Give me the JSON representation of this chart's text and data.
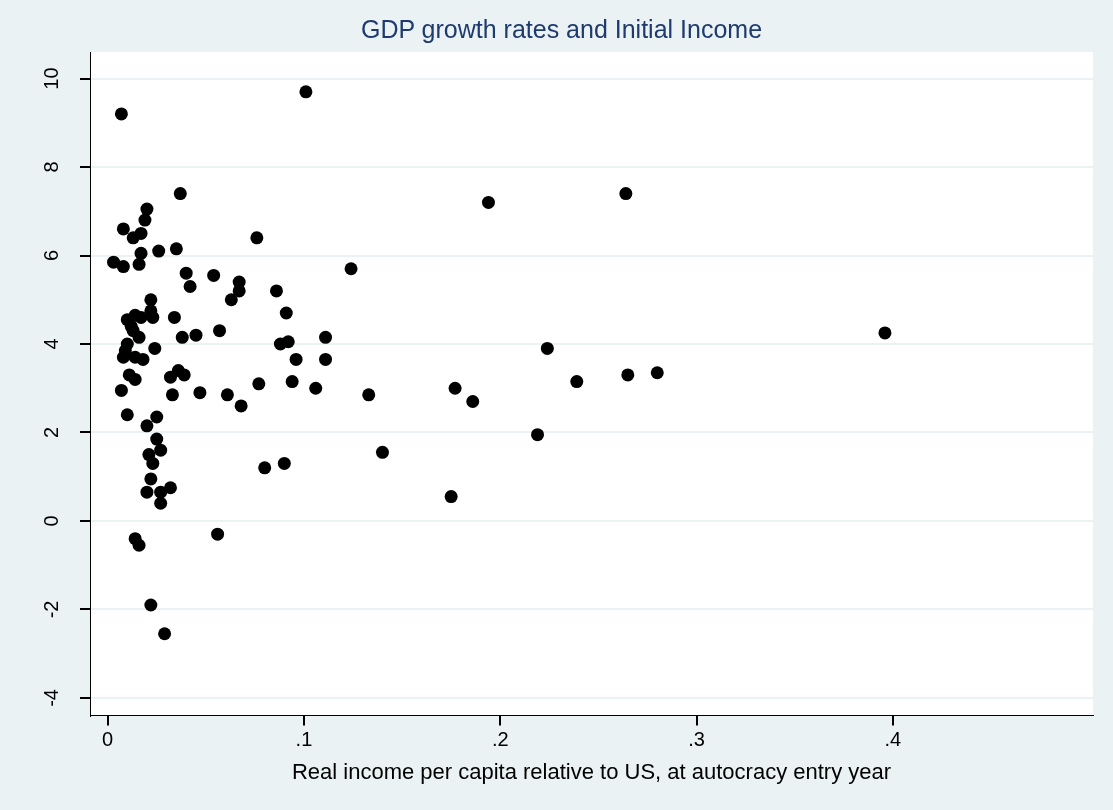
{
  "chart_data": {
    "type": "scatter",
    "title": "GDP growth rates and Initial Income",
    "xlabel": "Real income per capita relative to US, at autocracy entry year",
    "x": [
      0.003,
      0.007,
      0.008,
      0.008,
      0.007,
      0.008,
      0.009,
      0.01,
      0.01,
      0.01,
      0.011,
      0.012,
      0.013,
      0.013,
      0.014,
      0.014,
      0.014,
      0.014,
      0.016,
      0.016,
      0.017,
      0.017,
      0.017,
      0.016,
      0.018,
      0.019,
      0.02,
      0.02,
      0.02,
      0.021,
      0.022,
      0.022,
      0.022,
      0.022,
      0.023,
      0.023,
      0.024,
      0.025,
      0.025,
      0.026,
      0.027,
      0.027,
      0.027,
      0.029,
      0.032,
      0.032,
      0.033,
      0.034,
      0.035,
      0.036,
      0.037,
      0.038,
      0.039,
      0.04,
      0.042,
      0.045,
      0.047,
      0.054,
      0.056,
      0.057,
      0.061,
      0.063,
      0.067,
      0.067,
      0.068,
      0.076,
      0.077,
      0.08,
      0.086,
      0.088,
      0.09,
      0.091,
      0.092,
      0.094,
      0.096,
      0.101,
      0.106,
      0.111,
      0.111,
      0.124,
      0.133,
      0.14,
      0.175,
      0.177,
      0.186,
      0.194,
      0.219,
      0.224,
      0.239,
      0.264,
      0.265,
      0.28,
      0.396
    ],
    "values": [
      5.85,
      9.2,
      5.75,
      6.6,
      2.95,
      3.7,
      3.85,
      4.55,
      4.0,
      2.4,
      3.3,
      4.4,
      4.3,
      6.4,
      3.2,
      3.7,
      4.65,
      -0.4,
      5.8,
      4.15,
      6.05,
      6.5,
      4.6,
      -0.55,
      3.65,
      6.8,
      7.05,
      2.15,
      0.65,
      1.5,
      0.95,
      -1.9,
      5.0,
      4.75,
      4.6,
      1.3,
      3.9,
      2.35,
      1.85,
      6.1,
      1.6,
      0.65,
      0.4,
      -2.55,
      3.25,
      0.75,
      2.85,
      4.6,
      6.15,
      3.4,
      7.4,
      4.15,
      3.3,
      5.6,
      5.3,
      4.2,
      2.9,
      5.55,
      -0.3,
      4.3,
      2.85,
      5.0,
      5.4,
      5.2,
      2.6,
      6.4,
      3.1,
      1.2,
      5.2,
      4.0,
      1.3,
      4.7,
      4.05,
      3.15,
      3.65,
      9.7,
      3.0,
      4.15,
      3.65,
      5.7,
      2.85,
      1.55,
      0.55,
      3.0,
      2.7,
      7.2,
      1.95,
      3.9,
      3.15,
      7.4,
      3.3,
      3.35,
      4.25
    ],
    "color": "#000000",
    "marker": "circle",
    "xlim": [
      -0.009,
      0.502
    ],
    "xticks": [
      0,
      {
        "value": 0.1,
        "label": ".1"
      },
      {
        "value": 0.2,
        "label": ".2"
      },
      {
        "value": 0.3,
        "label": ".3"
      },
      {
        "value": 0.4,
        "label": ".4"
      }
    ],
    "ylim": [
      -4.4,
      10.6
    ],
    "yticks": [
      -4,
      -2,
      0,
      2,
      4,
      6,
      8,
      10
    ],
    "grid": "y"
  }
}
